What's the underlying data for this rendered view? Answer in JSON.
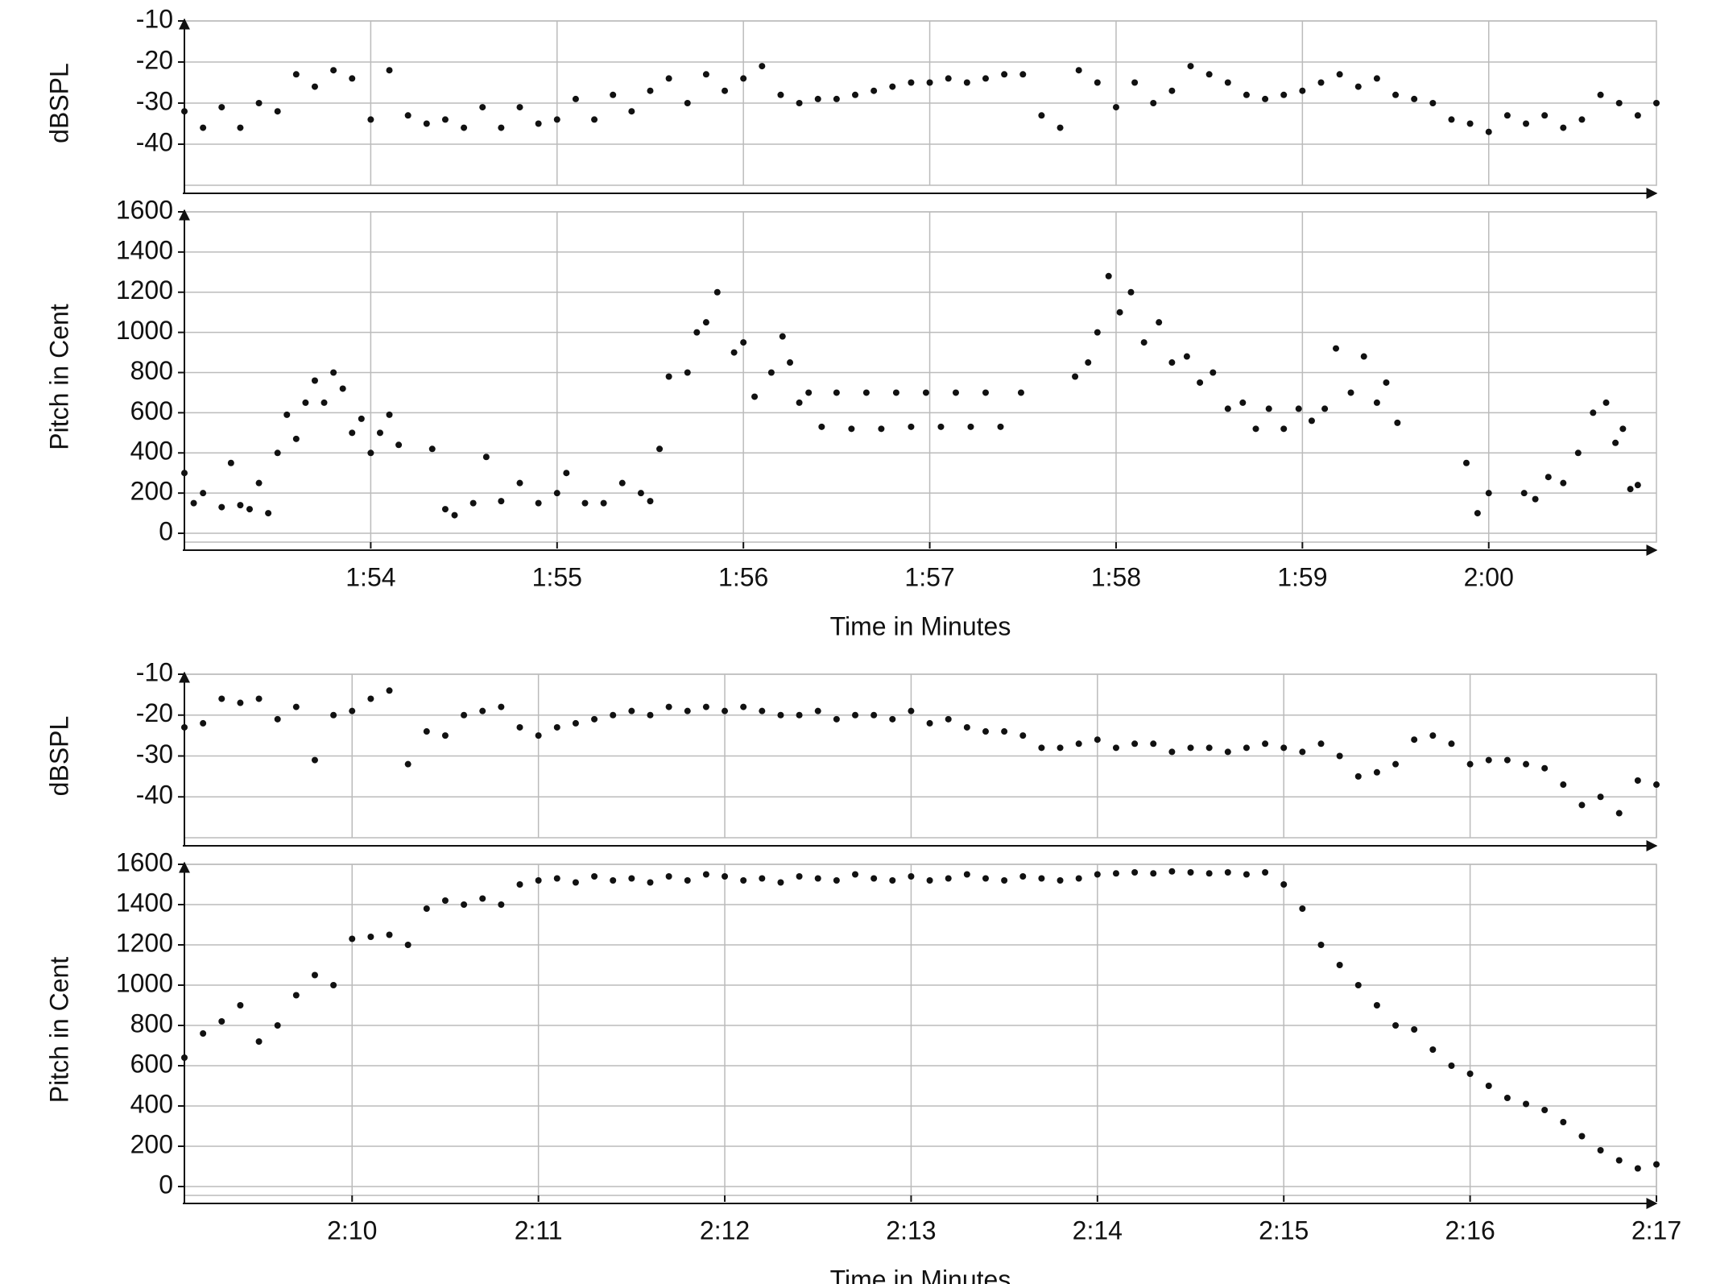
{
  "chart_data": [
    {
      "type": "scatter",
      "y_label": "dBSPL",
      "color": "#111111",
      "grid": true,
      "xlim": [
        113.0,
        120.9
      ],
      "ylim": [
        -50,
        -10
      ],
      "yticks": [
        -10,
        -20,
        -30,
        -40
      ],
      "xticks": [
        114,
        115,
        116,
        117,
        118,
        119,
        120
      ],
      "x": [
        113.0,
        113.1,
        113.2,
        113.3,
        113.4,
        113.5,
        113.6,
        113.7,
        113.8,
        113.9,
        114.0,
        114.1,
        114.2,
        114.3,
        114.4,
        114.5,
        114.6,
        114.7,
        114.8,
        114.9,
        115.0,
        115.1,
        115.2,
        115.3,
        115.4,
        115.5,
        115.6,
        115.7,
        115.8,
        115.9,
        116.0,
        116.1,
        116.2,
        116.3,
        116.4,
        116.5,
        116.6,
        116.7,
        116.8,
        116.9,
        117.0,
        117.1,
        117.2,
        117.3,
        117.4,
        117.5,
        117.6,
        117.7,
        117.8,
        117.9,
        118.0,
        118.1,
        118.2,
        118.3,
        118.4,
        118.5,
        118.6,
        118.7,
        118.8,
        118.9,
        119.0,
        119.1,
        119.2,
        119.3,
        119.4,
        119.5,
        119.6,
        119.7,
        119.8,
        119.9,
        120.0,
        120.1,
        120.2,
        120.3,
        120.4,
        120.5,
        120.6,
        120.7,
        120.8,
        120.9
      ],
      "values": [
        -32,
        -36,
        -31,
        -36,
        -30,
        -32,
        -23,
        -26,
        -22,
        -24,
        -34,
        -22,
        -33,
        -35,
        -34,
        -36,
        -31,
        -36,
        -31,
        -35,
        -34,
        -29,
        -34,
        -28,
        -32,
        -27,
        -24,
        -30,
        -23,
        -27,
        -24,
        -21,
        -28,
        -30,
        -29,
        -29,
        -28,
        -27,
        -26,
        -25,
        -25,
        -24,
        -25,
        -24,
        -23,
        -23,
        -33,
        -36,
        -22,
        -25,
        -31,
        -25,
        -30,
        -27,
        -21,
        -23,
        -25,
        -28,
        -29,
        -28,
        -27,
        -25,
        -23,
        -26,
        -24,
        -28,
        -29,
        -30,
        -34,
        -35,
        -37,
        -33,
        -35,
        -33,
        -36,
        -34,
        -28,
        -30,
        -33,
        -30
      ]
    },
    {
      "type": "scatter",
      "y_label": "Pitch in Cent",
      "x_label": "Time in Minutes",
      "color": "#111111",
      "grid": true,
      "xlim": [
        113.0,
        120.9
      ],
      "ylim": [
        -44,
        1600
      ],
      "yticks": [
        0,
        200,
        400,
        600,
        800,
        1000,
        1200,
        1400,
        1600
      ],
      "xticks": [
        {
          "value": 114,
          "label": "1:54"
        },
        {
          "value": 115,
          "label": "1:55"
        },
        {
          "value": 116,
          "label": "1:56"
        },
        {
          "value": 117,
          "label": "1:57"
        },
        {
          "value": 118,
          "label": "1:58"
        },
        {
          "value": 119,
          "label": "1:59"
        },
        {
          "value": 120,
          "label": "2:00"
        }
      ],
      "x": [
        113.0,
        113.05,
        113.1,
        113.2,
        113.25,
        113.3,
        113.35,
        113.4,
        113.45,
        113.5,
        113.55,
        113.6,
        113.65,
        113.7,
        113.75,
        113.8,
        113.85,
        113.9,
        113.95,
        114.0,
        114.05,
        114.1,
        114.15,
        114.33,
        114.4,
        114.45,
        114.55,
        114.62,
        114.7,
        114.8,
        114.9,
        115.0,
        115.05,
        115.15,
        115.25,
        115.35,
        115.45,
        115.5,
        115.55,
        115.6,
        115.7,
        115.75,
        115.8,
        115.86,
        115.95,
        116.0,
        116.06,
        116.15,
        116.21,
        116.25,
        116.3,
        116.35,
        116.42,
        116.5,
        116.58,
        116.66,
        116.74,
        116.82,
        116.9,
        116.98,
        117.06,
        117.14,
        117.22,
        117.3,
        117.38,
        117.49,
        117.78,
        117.85,
        117.9,
        117.96,
        118.02,
        118.08,
        118.15,
        118.23,
        118.3,
        118.38,
        118.45,
        118.52,
        118.6,
        118.68,
        118.75,
        118.82,
        118.9,
        118.98,
        119.05,
        119.12,
        119.18,
        119.26,
        119.33,
        119.4,
        119.45,
        119.51,
        119.88,
        119.94,
        120.0,
        120.19,
        120.25,
        120.32,
        120.4,
        120.48,
        120.56,
        120.63,
        120.68,
        120.72,
        120.76,
        120.8
      ],
      "values": [
        300,
        150,
        200,
        130,
        350,
        140,
        120,
        250,
        100,
        400,
        590,
        470,
        650,
        760,
        650,
        800,
        720,
        500,
        570,
        400,
        500,
        590,
        440,
        420,
        120,
        90,
        150,
        380,
        160,
        250,
        150,
        200,
        300,
        150,
        150,
        250,
        200,
        160,
        420,
        780,
        800,
        1000,
        1050,
        1200,
        900,
        950,
        680,
        800,
        980,
        850,
        650,
        700,
        530,
        700,
        520,
        700,
        520,
        700,
        530,
        700,
        530,
        700,
        530,
        700,
        530,
        700,
        780,
        850,
        1000,
        1280,
        1100,
        1200,
        950,
        1050,
        850,
        880,
        750,
        800,
        620,
        650,
        520,
        620,
        520,
        620,
        560,
        620,
        920,
        700,
        880,
        650,
        750,
        550,
        350,
        100,
        200,
        200,
        170,
        280,
        250,
        400,
        600,
        650,
        450,
        520,
        220,
        240
      ]
    },
    {
      "type": "scatter",
      "y_label": "dBSPL",
      "color": "#111111",
      "grid": true,
      "xlim": [
        129.1,
        137.0
      ],
      "ylim": [
        -50,
        -10
      ],
      "yticks": [
        -10,
        -20,
        -30,
        -40
      ],
      "xticks": [
        130,
        131,
        132,
        133,
        134,
        135,
        136,
        137
      ],
      "x": [
        129.1,
        129.2,
        129.3,
        129.4,
        129.5,
        129.6,
        129.7,
        129.8,
        129.9,
        130.0,
        130.1,
        130.2,
        130.3,
        130.4,
        130.5,
        130.6,
        130.7,
        130.8,
        130.9,
        131.0,
        131.1,
        131.2,
        131.3,
        131.4,
        131.5,
        131.6,
        131.7,
        131.8,
        131.9,
        132.0,
        132.1,
        132.2,
        132.3,
        132.4,
        132.5,
        132.6,
        132.7,
        132.8,
        132.9,
        133.0,
        133.1,
        133.2,
        133.3,
        133.4,
        133.5,
        133.6,
        133.7,
        133.8,
        133.9,
        134.0,
        134.1,
        134.2,
        134.3,
        134.4,
        134.5,
        134.6,
        134.7,
        134.8,
        134.9,
        135.0,
        135.1,
        135.2,
        135.3,
        135.4,
        135.5,
        135.6,
        135.7,
        135.8,
        135.9,
        136.0,
        136.1,
        136.2,
        136.3,
        136.4,
        136.5,
        136.6,
        136.7,
        136.8,
        136.9,
        137.0
      ],
      "values": [
        -23,
        -22,
        -16,
        -17,
        -16,
        -21,
        -18,
        -31,
        -20,
        -19,
        -16,
        -14,
        -32,
        -24,
        -25,
        -20,
        -19,
        -18,
        -23,
        -25,
        -23,
        -22,
        -21,
        -20,
        -19,
        -20,
        -18,
        -19,
        -18,
        -19,
        -18,
        -19,
        -20,
        -20,
        -19,
        -21,
        -20,
        -20,
        -21,
        -19,
        -22,
        -21,
        -23,
        -24,
        -24,
        -25,
        -28,
        -28,
        -27,
        -26,
        -28,
        -27,
        -27,
        -29,
        -28,
        -28,
        -29,
        -28,
        -27,
        -28,
        -29,
        -27,
        -30,
        -35,
        -34,
        -32,
        -26,
        -25,
        -27,
        -32,
        -31,
        -31,
        -32,
        -33,
        -37,
        -42,
        -40,
        -44,
        -36,
        -37
      ]
    },
    {
      "type": "scatter",
      "y_label": "Pitch in Cent",
      "x_label": "Time in Minutes",
      "color": "#111111",
      "grid": true,
      "xlim": [
        129.1,
        137.0
      ],
      "ylim": [
        -44,
        1600
      ],
      "yticks": [
        0,
        200,
        400,
        600,
        800,
        1000,
        1200,
        1400,
        1600
      ],
      "xticks": [
        {
          "value": 130,
          "label": "2:10"
        },
        {
          "value": 131,
          "label": "2:11"
        },
        {
          "value": 132,
          "label": "2:12"
        },
        {
          "value": 133,
          "label": "2:13"
        },
        {
          "value": 134,
          "label": "2:14"
        },
        {
          "value": 135,
          "label": "2:15"
        },
        {
          "value": 136,
          "label": "2:16"
        },
        {
          "value": 137,
          "label": "2:17"
        }
      ],
      "x": [
        129.1,
        129.2,
        129.3,
        129.4,
        129.5,
        129.6,
        129.7,
        129.8,
        129.9,
        130.0,
        130.1,
        130.2,
        130.3,
        130.4,
        130.5,
        130.6,
        130.7,
        130.8,
        130.9,
        131.0,
        131.1,
        131.2,
        131.3,
        131.4,
        131.5,
        131.6,
        131.7,
        131.8,
        131.9,
        132.0,
        132.1,
        132.2,
        132.3,
        132.4,
        132.5,
        132.6,
        132.7,
        132.8,
        132.9,
        133.0,
        133.1,
        133.2,
        133.3,
        133.4,
        133.5,
        133.6,
        133.7,
        133.8,
        133.9,
        134.0,
        134.1,
        134.2,
        134.3,
        134.4,
        134.5,
        134.6,
        134.7,
        134.8,
        134.9,
        135.0,
        135.1,
        135.2,
        135.3,
        135.4,
        135.5,
        135.6,
        135.7,
        135.8,
        135.9,
        136.0,
        136.1,
        136.2,
        136.3,
        136.4,
        136.5,
        136.6,
        136.7,
        136.8,
        136.9,
        137.0
      ],
      "values": [
        640,
        760,
        820,
        900,
        720,
        800,
        950,
        1050,
        1000,
        1230,
        1240,
        1250,
        1200,
        1380,
        1420,
        1400,
        1430,
        1400,
        1500,
        1520,
        1530,
        1510,
        1540,
        1520,
        1530,
        1510,
        1540,
        1520,
        1550,
        1540,
        1520,
        1530,
        1510,
        1540,
        1530,
        1520,
        1550,
        1530,
        1520,
        1540,
        1520,
        1530,
        1550,
        1530,
        1520,
        1540,
        1530,
        1520,
        1530,
        1550,
        1555,
        1560,
        1555,
        1565,
        1560,
        1555,
        1560,
        1550,
        1560,
        1500,
        1380,
        1200,
        1100,
        1000,
        900,
        800,
        780,
        680,
        600,
        560,
        500,
        440,
        410,
        380,
        320,
        250,
        180,
        130,
        90,
        110
      ]
    }
  ]
}
